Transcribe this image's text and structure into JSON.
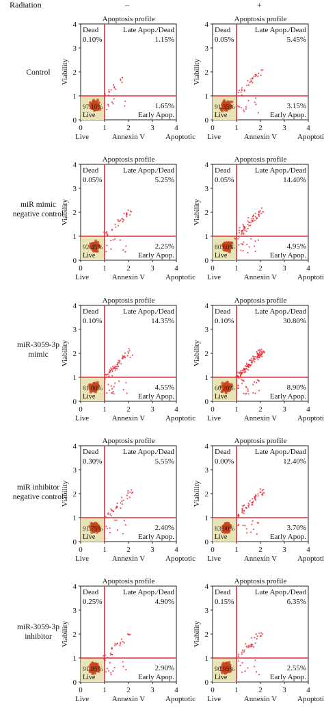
{
  "header": {
    "radiation_label": "Radiation",
    "col_minus": "–",
    "col_plus": "+"
  },
  "rows": [
    {
      "label_lines": [
        "Control"
      ]
    },
    {
      "label_lines": [
        "miR mimic",
        "negative control"
      ]
    },
    {
      "label_lines": [
        "miR-3059-3p",
        "mimic"
      ]
    },
    {
      "label_lines": [
        "miR inhibitor",
        "negative control"
      ]
    },
    {
      "label_lines": [
        "miR-3059-3p",
        "inhibitor"
      ]
    }
  ],
  "chart_data": {
    "type": "scatter",
    "panel_title": "Apoptosis profile",
    "xlabel": "Annexin V",
    "ylabel": "Viability",
    "xlim": [
      0,
      4
    ],
    "ylim": [
      0,
      4
    ],
    "xticks": [
      0,
      1,
      2,
      3,
      4
    ],
    "yticks": [
      0,
      1,
      2,
      3,
      4
    ],
    "x_axis_left_label": "Live",
    "x_axis_right_label": "Apoptotic",
    "gate_x": 1,
    "gate_y": 1,
    "quadrant_labels": {
      "dead": "Dead",
      "late": "Late Apop./Dead",
      "early": "Early Apop.",
      "live": "Live"
    },
    "colors": {
      "gate": "#e0303a",
      "points": "#e8202a",
      "live_box": "#e9e4b8",
      "live_core": "#c8451f"
    },
    "panels": [
      {
        "row": 0,
        "radiation": "–",
        "dead": "0.10%",
        "late": "1.15%",
        "early": "1.65%",
        "live": "97.10%"
      },
      {
        "row": 0,
        "radiation": "+",
        "dead": "0.05%",
        "late": "5.45%",
        "early": "3.15%",
        "live": "91.35%"
      },
      {
        "row": 1,
        "radiation": "–",
        "dead": "0.05%",
        "late": "5.25%",
        "early": "2.25%",
        "live": "92.45%"
      },
      {
        "row": 1,
        "radiation": "+",
        "dead": "0.05%",
        "late": "14.40%",
        "early": "4.95%",
        "live": "80.60%"
      },
      {
        "row": 2,
        "radiation": "–",
        "dead": "0.10%",
        "late": "14.35%",
        "early": "4.55%",
        "live": "81.00%"
      },
      {
        "row": 2,
        "radiation": "+",
        "dead": "0.10%",
        "late": "30.80%",
        "early": "8.90%",
        "live": "60.20%"
      },
      {
        "row": 3,
        "radiation": "–",
        "dead": "0.30%",
        "late": "5.55%",
        "early": "2.40%",
        "live": "91.75%"
      },
      {
        "row": 3,
        "radiation": "+",
        "dead": "0.00%",
        "late": "12.40%",
        "early": "3.70%",
        "live": "83.90%"
      },
      {
        "row": 4,
        "radiation": "–",
        "dead": "0.25%",
        "late": "4.90%",
        "early": "2.90%",
        "live": "91.95%"
      },
      {
        "row": 4,
        "radiation": "+",
        "dead": "0.15%",
        "late": "6.35%",
        "early": "2.55%",
        "live": "90.95%"
      }
    ]
  }
}
